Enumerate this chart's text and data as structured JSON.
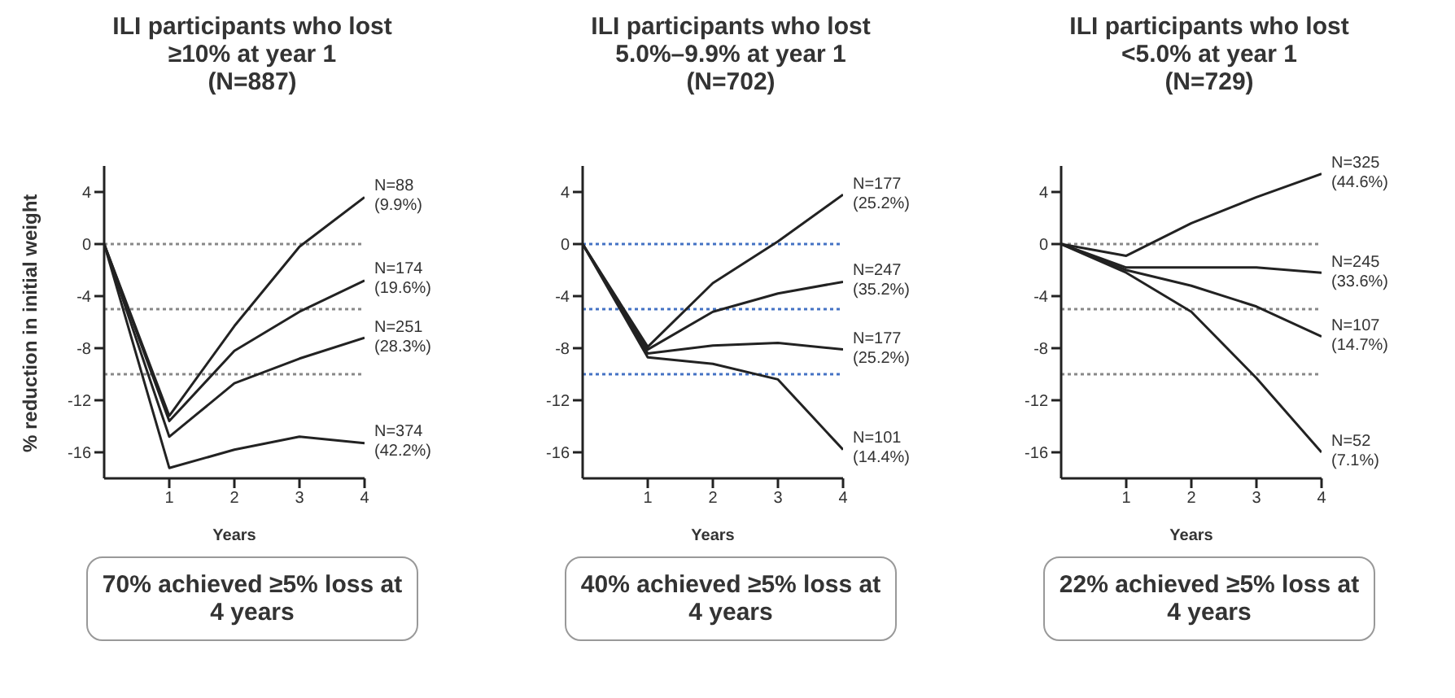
{
  "chart_data": [
    {
      "type": "line",
      "title": "ILI participants who lost ≥10% at year 1",
      "subtitle": "(N=887)",
      "xlabel": "Years",
      "ylabel": "% reduction in initial weight",
      "x": [
        0,
        1,
        2,
        3,
        4
      ],
      "xlim": [
        0,
        4
      ],
      "xticks": [
        1,
        2,
        3,
        4
      ],
      "ylim": [
        -18,
        6
      ],
      "yticks": [
        -16,
        -12,
        -8,
        -4,
        0,
        4
      ],
      "grid": false,
      "legend": false,
      "marker": "none",
      "line_style": "solid",
      "ref_lines": [
        {
          "axis": "y",
          "value": 0,
          "color": "#888888",
          "line_style": "dotted"
        },
        {
          "axis": "y",
          "value": -5,
          "color": "#888888",
          "line_style": "dotted"
        },
        {
          "axis": "y",
          "value": -10,
          "color": "#888888",
          "line_style": "dotted"
        }
      ],
      "annotations": [
        "70% achieved ≥5% loss at 4 years"
      ],
      "series": [
        {
          "name": "N=88 (9.9%)",
          "color": "#222222",
          "values": [
            0,
            -13.2,
            -6.3,
            -0.2,
            3.6
          ]
        },
        {
          "name": "N=174 (19.6%)",
          "color": "#222222",
          "values": [
            0,
            -13.6,
            -8.2,
            -5.2,
            -2.8
          ]
        },
        {
          "name": "N=251 (28.3%)",
          "color": "#222222",
          "values": [
            0,
            -14.8,
            -10.7,
            -8.8,
            -7.2
          ]
        },
        {
          "name": "N=374 (42.2%)",
          "color": "#222222",
          "values": [
            0,
            -17.2,
            -15.8,
            -14.8,
            -15.3
          ]
        }
      ]
    },
    {
      "type": "line",
      "title": "ILI participants who lost 5.0%–9.9% at year 1",
      "subtitle": "(N=702)",
      "xlabel": "Years",
      "x": [
        0,
        1,
        2,
        3,
        4
      ],
      "xlim": [
        0,
        4
      ],
      "xticks": [
        1,
        2,
        3,
        4
      ],
      "ylim": [
        -18,
        6
      ],
      "yticks": [
        -16,
        -12,
        -8,
        -4,
        0,
        4
      ],
      "grid": false,
      "legend": false,
      "marker": "none",
      "line_style": "solid",
      "ref_lines": [
        {
          "axis": "y",
          "value": 0,
          "color": "#4472c4",
          "line_style": "dotted"
        },
        {
          "axis": "y",
          "value": -5,
          "color": "#4472c4",
          "line_style": "dotted"
        },
        {
          "axis": "y",
          "value": -10,
          "color": "#4472c4",
          "line_style": "dotted"
        }
      ],
      "annotations": [
        "40% achieved ≥5% loss at 4 years"
      ],
      "series": [
        {
          "name": "N=177 (25.2%)",
          "color": "#222222",
          "values": [
            0,
            -7.9,
            -3,
            0.2,
            3.8
          ]
        },
        {
          "name": "N=247 (35.2%)",
          "color": "#222222",
          "values": [
            0,
            -8.1,
            -5.2,
            -3.8,
            -2.9
          ]
        },
        {
          "name": "N=177 (25.2%)",
          "color": "#222222",
          "values": [
            0,
            -8.4,
            -7.8,
            -7.6,
            -8.1
          ]
        },
        {
          "name": "N=101 (14.4%)",
          "color": "#222222",
          "values": [
            0,
            -8.7,
            -9.2,
            -10.4,
            -15.8
          ]
        }
      ]
    },
    {
      "type": "line",
      "title": "ILI participants who lost <5.0% at year 1",
      "subtitle": "(N=729)",
      "xlabel": "Years",
      "x": [
        0,
        1,
        2,
        3,
        4
      ],
      "xlim": [
        0,
        4
      ],
      "xticks": [
        1,
        2,
        3,
        4
      ],
      "ylim": [
        -18,
        6
      ],
      "yticks": [
        -16,
        -12,
        -8,
        -4,
        0,
        4
      ],
      "grid": false,
      "legend": false,
      "marker": "none",
      "line_style": "solid",
      "ref_lines": [
        {
          "axis": "y",
          "value": 0,
          "color": "#888888",
          "line_style": "dotted"
        },
        {
          "axis": "y",
          "value": -5,
          "color": "#888888",
          "line_style": "dotted"
        },
        {
          "axis": "y",
          "value": -10,
          "color": "#888888",
          "line_style": "dotted"
        }
      ],
      "annotations": [
        "22% achieved ≥5% loss at 4 years"
      ],
      "series": [
        {
          "name": "N=325 (44.6%)",
          "color": "#222222",
          "values": [
            0,
            -0.9,
            1.6,
            3.6,
            5.4
          ]
        },
        {
          "name": "N=245 (33.6%)",
          "color": "#222222",
          "values": [
            0,
            -1.8,
            -1.8,
            -1.8,
            -2.2
          ]
        },
        {
          "name": "N=107 (14.7%)",
          "color": "#222222",
          "values": [
            0,
            -2,
            -3.2,
            -4.8,
            -7.1
          ]
        },
        {
          "name": "N=52 (7.1%)",
          "color": "#222222",
          "values": [
            0,
            -2.2,
            -5.2,
            -10.3,
            -16
          ]
        }
      ]
    }
  ]
}
